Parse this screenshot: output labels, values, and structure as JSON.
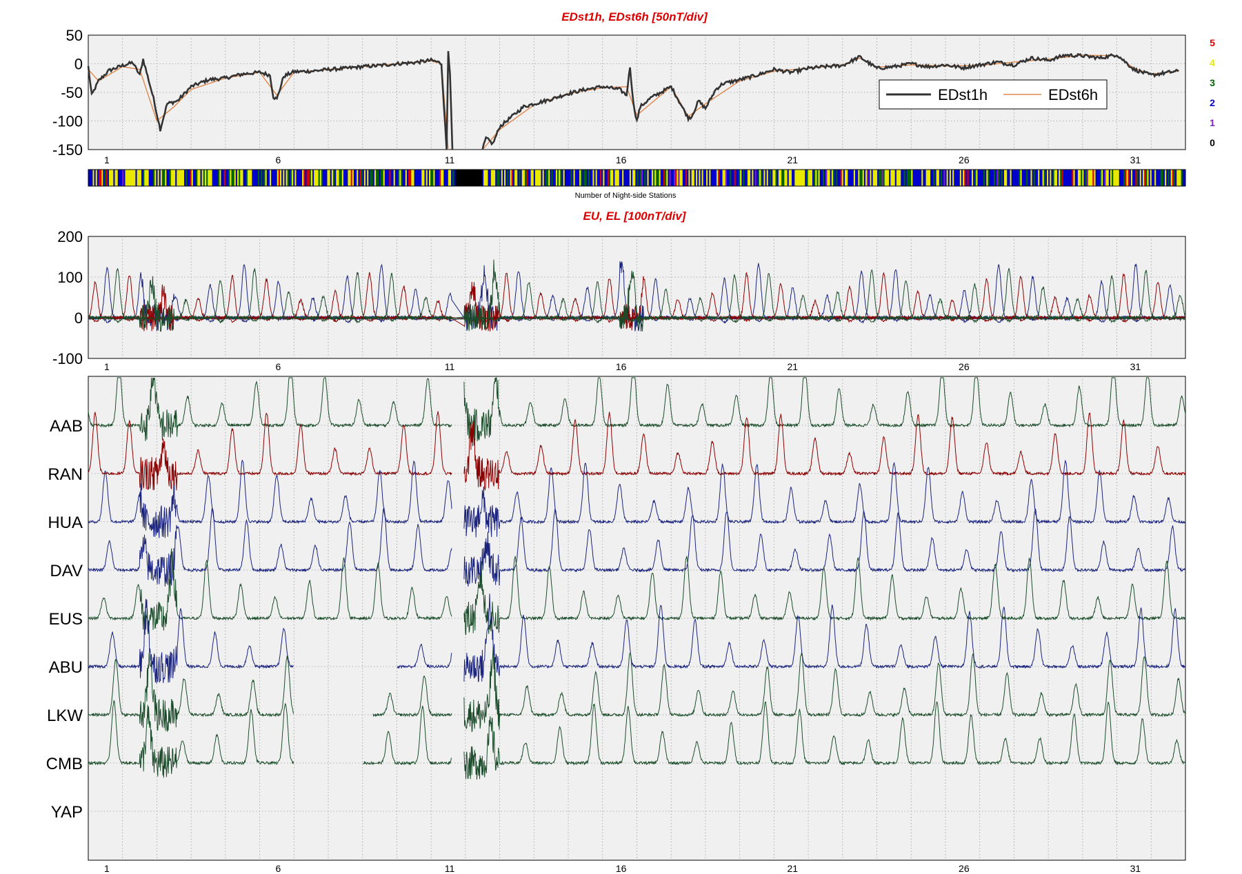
{
  "chart_data": [
    {
      "type": "line",
      "title": "EDst1h, EDst6h [50nT/div]",
      "ylim": [
        -150,
        50
      ],
      "yticks": [
        "50",
        "0",
        "-50",
        "-100",
        "-150"
      ],
      "xlim": [
        0,
        32
      ],
      "xticks": [
        "1",
        "6",
        "11",
        "16",
        "21",
        "26",
        "31"
      ],
      "grid": true,
      "legend_position": "upper-right",
      "series": [
        {
          "name": "EDst1h",
          "color": "#333333",
          "x": [
            0,
            0.1,
            0.3,
            0.6,
            1,
            1.3,
            1.5,
            1.6,
            1.9,
            2.1,
            2.3,
            2.6,
            3,
            3.5,
            4,
            4.5,
            5,
            5.3,
            5.4,
            5.5,
            5.7,
            6,
            6.5,
            7,
            7.5,
            8,
            8.5,
            9,
            9.5,
            10,
            10.2,
            10.3,
            10.45,
            10.5,
            10.55,
            10.62
          ],
          "values": [
            -5,
            -55,
            -30,
            -12,
            -3,
            2,
            -20,
            8,
            -60,
            -115,
            -70,
            -65,
            -40,
            -28,
            -25,
            -18,
            -15,
            -20,
            -58,
            -62,
            -22,
            -14,
            -13,
            -10,
            -8,
            -5,
            -3,
            0,
            2,
            6,
            3,
            0,
            -150,
            25,
            -20,
            -150
          ]
        },
        {
          "name": "EDst1h",
          "color": "#333333",
          "x": [
            11.5,
            11.6,
            11.8,
            12,
            12.3,
            12.7,
            13,
            13.5,
            14,
            14.5,
            15,
            15.5,
            15.7,
            15.8,
            15.9,
            16,
            16.1,
            16.4,
            17,
            17.5,
            17.6,
            17.8,
            18,
            18.3,
            18.5,
            19,
            19.5,
            20,
            20.5,
            21,
            21.5,
            22,
            22.5,
            23,
            23.5,
            24,
            24.5,
            25,
            25.5,
            26,
            26.5,
            27,
            27.5,
            28,
            28.5,
            29,
            29.5,
            30,
            30.5,
            31,
            31.5,
            31.8
          ],
          "values": [
            -150,
            -130,
            -140,
            -110,
            -95,
            -75,
            -70,
            -62,
            -52,
            -45,
            -40,
            -45,
            -55,
            -5,
            -70,
            -100,
            -75,
            -60,
            -40,
            -95,
            -92,
            -65,
            -78,
            -45,
            -35,
            -28,
            -20,
            -10,
            -15,
            -8,
            -5,
            -3,
            12,
            -8,
            -5,
            0,
            -5,
            -2,
            -7,
            -2,
            3,
            -2,
            10,
            6,
            15,
            14,
            10,
            16,
            -10,
            -20,
            -15,
            -13
          ]
        },
        {
          "name": "EDst6h",
          "color": "#e0864a",
          "x": [
            0,
            0.3,
            1,
            1.5,
            2,
            2.5,
            3,
            4,
            5,
            5.5,
            6,
            7,
            8,
            9,
            10,
            10.3,
            10.5
          ],
          "values": [
            -10,
            -30,
            -5,
            -10,
            -100,
            -75,
            -45,
            -25,
            -15,
            -55,
            -15,
            -10,
            -5,
            0,
            5,
            0,
            -150
          ]
        },
        {
          "name": "EDst6h",
          "color": "#e0864a",
          "x": [
            11.5,
            12,
            13,
            14,
            15,
            15.7,
            16,
            17,
            17.5,
            18,
            19,
            20,
            21,
            22,
            22.5,
            23,
            24,
            25,
            26,
            27,
            28,
            29,
            30,
            30.5,
            31,
            31.8
          ],
          "values": [
            -150,
            -115,
            -72,
            -52,
            -42,
            -40,
            -90,
            -40,
            -92,
            -70,
            -30,
            -13,
            -8,
            -2,
            10,
            -6,
            -2,
            -4,
            -3,
            3,
            8,
            15,
            14,
            -8,
            -18,
            -13
          ]
        }
      ],
      "legend": [
        "EDst1h",
        "EDst6h"
      ],
      "activity_scale": {
        "levels": [
          "5",
          "4",
          "3",
          "2",
          "1",
          "0"
        ],
        "colors": [
          "#dd0000",
          "#e8e800",
          "#006400",
          "#0000cc",
          "#7f1fbf",
          "#000000"
        ],
        "label": "Number of Night-side Stations"
      }
    },
    {
      "type": "line",
      "title": "EU, EL   [100nT/div]",
      "ylim": [
        -100,
        200
      ],
      "yticks": [
        "200",
        "100",
        "0",
        "-100"
      ],
      "xlim": [
        0,
        32
      ],
      "xticks": [
        "1",
        "6",
        "11",
        "16",
        "21",
        "26",
        "31"
      ],
      "grid": true,
      "series": [
        {
          "color": "#1a237e",
          "peak_phase": 0.55,
          "peak_amplitude": 120
        },
        {
          "color": "#8b0000",
          "peak_phase": 0.2,
          "peak_amplitude": 100
        },
        {
          "color": "#1b4d2b",
          "peak_phase": 0.85,
          "peak_amplitude": 110
        }
      ]
    },
    {
      "type": "line",
      "xlim": [
        0,
        32
      ],
      "xticks": [
        "1",
        "6",
        "11",
        "16",
        "21",
        "26",
        "31"
      ],
      "grid": true,
      "stations": [
        {
          "label": "AAB",
          "color": "#1b4d2b",
          "phase": 0.9,
          "gaps": []
        },
        {
          "label": "RAN",
          "color": "#8b0000",
          "phase": 0.2,
          "gaps": []
        },
        {
          "label": "HUA",
          "color": "#1a237e",
          "phase": 0.5,
          "gaps": []
        },
        {
          "label": "DAV",
          "color": "#1a237e",
          "phase": 0.62,
          "gaps": []
        },
        {
          "label": "EUS",
          "color": "#1b4d2b",
          "phase": 0.45,
          "gaps": []
        },
        {
          "label": "ABU",
          "color": "#1a237e",
          "phase": 0.7,
          "gaps": [
            [
              6,
              9
            ]
          ]
        },
        {
          "label": "LKW",
          "color": "#1b4d2b",
          "phase": 0.8,
          "gaps": [
            [
              6,
              8.3
            ]
          ]
        },
        {
          "label": "CMB",
          "color": "#1b4d2b",
          "phase": 0.75,
          "gaps": [
            [
              6,
              8
            ]
          ]
        },
        {
          "label": "YAP",
          "color": "#1a237e",
          "phase": 0.7,
          "gaps": [
            [
              0,
              32
            ]
          ]
        }
      ]
    }
  ]
}
